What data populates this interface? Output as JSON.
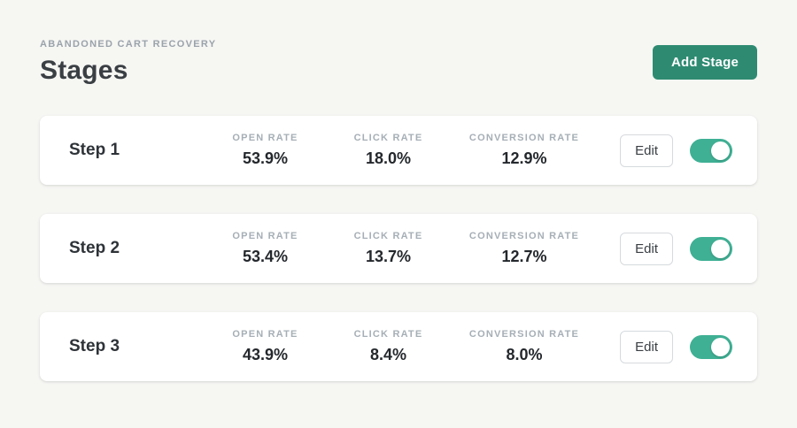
{
  "colors": {
    "page_bg": "#f6f6f3",
    "accent": "#2e8b72",
    "toggle_on": "#3fb094"
  },
  "header": {
    "eyebrow": "ABANDONED CART RECOVERY",
    "title": "Stages",
    "add_stage_label": "Add Stage"
  },
  "stages": [
    {
      "name": "Step 1",
      "metrics": [
        {
          "label": "OPEN RATE",
          "value": "53.9%"
        },
        {
          "label": "CLICK RATE",
          "value": "18.0%"
        },
        {
          "label": "CONVERSION RATE",
          "value": "12.9%"
        }
      ],
      "edit_label": "Edit",
      "toggle_on": true
    },
    {
      "name": "Step 2",
      "metrics": [
        {
          "label": "OPEN RATE",
          "value": "53.4%"
        },
        {
          "label": "CLICK RATE",
          "value": "13.7%"
        },
        {
          "label": "CONVERSION RATE",
          "value": "12.7%"
        }
      ],
      "edit_label": "Edit",
      "toggle_on": true
    },
    {
      "name": "Step 3",
      "metrics": [
        {
          "label": "OPEN RATE",
          "value": "43.9%"
        },
        {
          "label": "CLICK RATE",
          "value": "8.4%"
        },
        {
          "label": "CONVERSION RATE",
          "value": "8.0%"
        }
      ],
      "edit_label": "Edit",
      "toggle_on": true
    }
  ]
}
